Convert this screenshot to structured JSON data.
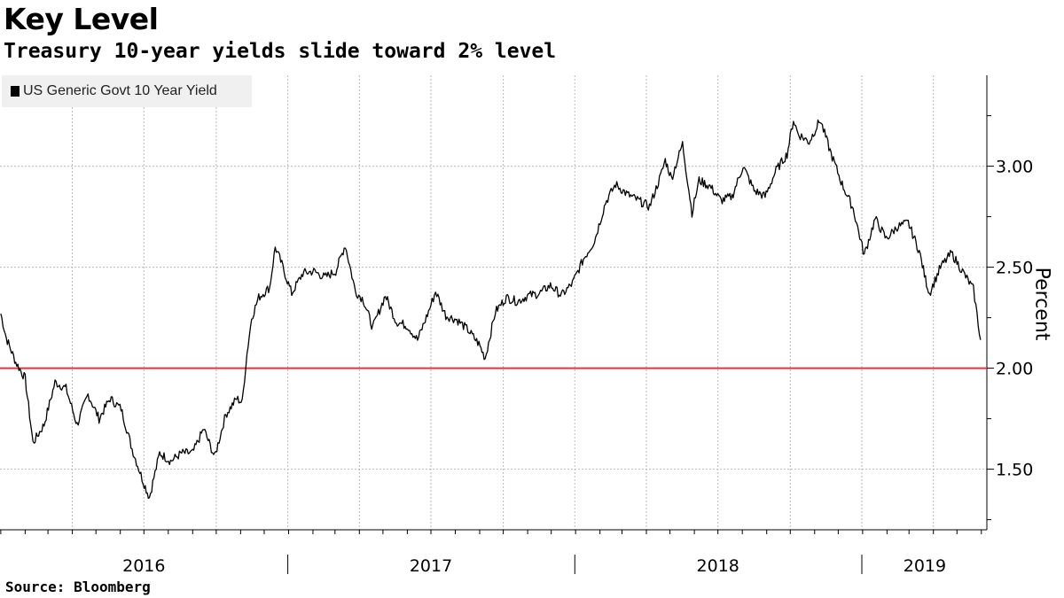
{
  "header": {
    "title": "Key Level",
    "subtitle": "Treasury 10-year yields slide toward 2% level"
  },
  "footer": {
    "source": "Source: Bloomberg"
  },
  "colors": {
    "series": "#000000",
    "reference": "#e8333b",
    "grid": "#b8b8b8",
    "legend_bg": "#f0f0f0"
  },
  "chart_data": {
    "type": "line",
    "title": "Key Level",
    "subtitle": "Treasury 10-year yields slide toward 2% level",
    "ylabel": "Percent",
    "xlabel": "",
    "y_axis_side": "right",
    "ylim": [
      1.2,
      3.45
    ],
    "xlim": [
      "2015-12-31",
      "2019-06-08"
    ],
    "y_ticks": [
      {
        "value": 3.0,
        "label": "3.00"
      },
      {
        "value": 2.5,
        "label": "2.50"
      },
      {
        "value": 2.0,
        "label": "2.00"
      },
      {
        "value": 1.5,
        "label": "1.50"
      }
    ],
    "x_labels": [
      {
        "label": "2016",
        "center": "2016-07-01"
      },
      {
        "label": "2017",
        "center": "2017-07-01"
      },
      {
        "label": "2018",
        "center": "2018-07-01"
      },
      {
        "label": "2019",
        "center": "2019-03-21"
      }
    ],
    "year_boundaries": [
      "2016-12-31",
      "2017-12-31",
      "2018-12-31"
    ],
    "grid": true,
    "legend": {
      "position": "top-left",
      "entries": [
        "US Generic Govt 10 Year Yield"
      ]
    },
    "reference_line": {
      "value": 2.0,
      "color": "#e8333b"
    },
    "series": [
      {
        "name": "US Generic Govt 10 Year Yield",
        "color": "#000000",
        "x": [
          "2016-01-01",
          "2016-01-08",
          "2016-01-20",
          "2016-02-01",
          "2016-02-11",
          "2016-02-25",
          "2016-03-10",
          "2016-03-24",
          "2016-04-07",
          "2016-04-21",
          "2016-05-05",
          "2016-05-19",
          "2016-06-02",
          "2016-06-16",
          "2016-06-30",
          "2016-07-08",
          "2016-07-21",
          "2016-08-04",
          "2016-08-18",
          "2016-09-01",
          "2016-09-15",
          "2016-09-29",
          "2016-10-13",
          "2016-10-27",
          "2016-11-03",
          "2016-11-09",
          "2016-11-15",
          "2016-11-24",
          "2016-12-08",
          "2016-12-15",
          "2016-12-22",
          "2017-01-05",
          "2017-01-19",
          "2017-02-02",
          "2017-02-16",
          "2017-03-02",
          "2017-03-14",
          "2017-03-27",
          "2017-04-06",
          "2017-04-18",
          "2017-05-04",
          "2017-05-18",
          "2017-06-01",
          "2017-06-14",
          "2017-06-28",
          "2017-07-07",
          "2017-07-20",
          "2017-08-03",
          "2017-08-17",
          "2017-08-31",
          "2017-09-08",
          "2017-09-21",
          "2017-10-05",
          "2017-10-19",
          "2017-11-02",
          "2017-11-16",
          "2017-11-30",
          "2017-12-14",
          "2017-12-28",
          "2018-01-11",
          "2018-01-25",
          "2018-02-08",
          "2018-02-21",
          "2018-03-08",
          "2018-03-22",
          "2018-04-05",
          "2018-04-19",
          "2018-04-25",
          "2018-05-03",
          "2018-05-17",
          "2018-05-29",
          "2018-06-07",
          "2018-06-21",
          "2018-07-05",
          "2018-07-19",
          "2018-08-02",
          "2018-08-16",
          "2018-08-30",
          "2018-09-13",
          "2018-09-27",
          "2018-10-05",
          "2018-10-11",
          "2018-10-25",
          "2018-11-08",
          "2018-11-22",
          "2018-12-06",
          "2018-12-20",
          "2019-01-03",
          "2019-01-17",
          "2019-01-31",
          "2019-02-14",
          "2019-02-28",
          "2019-03-14",
          "2019-03-22",
          "2019-03-27",
          "2019-04-10",
          "2019-04-24",
          "2019-05-08",
          "2019-05-22",
          "2019-05-31"
        ],
        "values": [
          2.27,
          2.15,
          2.03,
          1.95,
          1.63,
          1.72,
          1.93,
          1.9,
          1.72,
          1.87,
          1.75,
          1.85,
          1.8,
          1.6,
          1.44,
          1.36,
          1.58,
          1.54,
          1.58,
          1.58,
          1.7,
          1.56,
          1.77,
          1.85,
          1.83,
          2.07,
          2.25,
          2.35,
          2.4,
          2.6,
          2.53,
          2.37,
          2.47,
          2.48,
          2.45,
          2.48,
          2.61,
          2.38,
          2.34,
          2.2,
          2.36,
          2.23,
          2.21,
          2.14,
          2.28,
          2.38,
          2.26,
          2.24,
          2.19,
          2.12,
          2.05,
          2.28,
          2.35,
          2.33,
          2.36,
          2.37,
          2.41,
          2.36,
          2.42,
          2.54,
          2.63,
          2.82,
          2.91,
          2.86,
          2.83,
          2.8,
          2.95,
          3.03,
          2.94,
          3.11,
          2.77,
          2.93,
          2.9,
          2.83,
          2.85,
          3.0,
          2.88,
          2.85,
          2.98,
          3.06,
          3.23,
          3.16,
          3.12,
          3.23,
          3.06,
          2.91,
          2.79,
          2.56,
          2.74,
          2.64,
          2.7,
          2.72,
          2.58,
          2.44,
          2.37,
          2.5,
          2.57,
          2.48,
          2.39,
          2.14
        ]
      }
    ]
  }
}
